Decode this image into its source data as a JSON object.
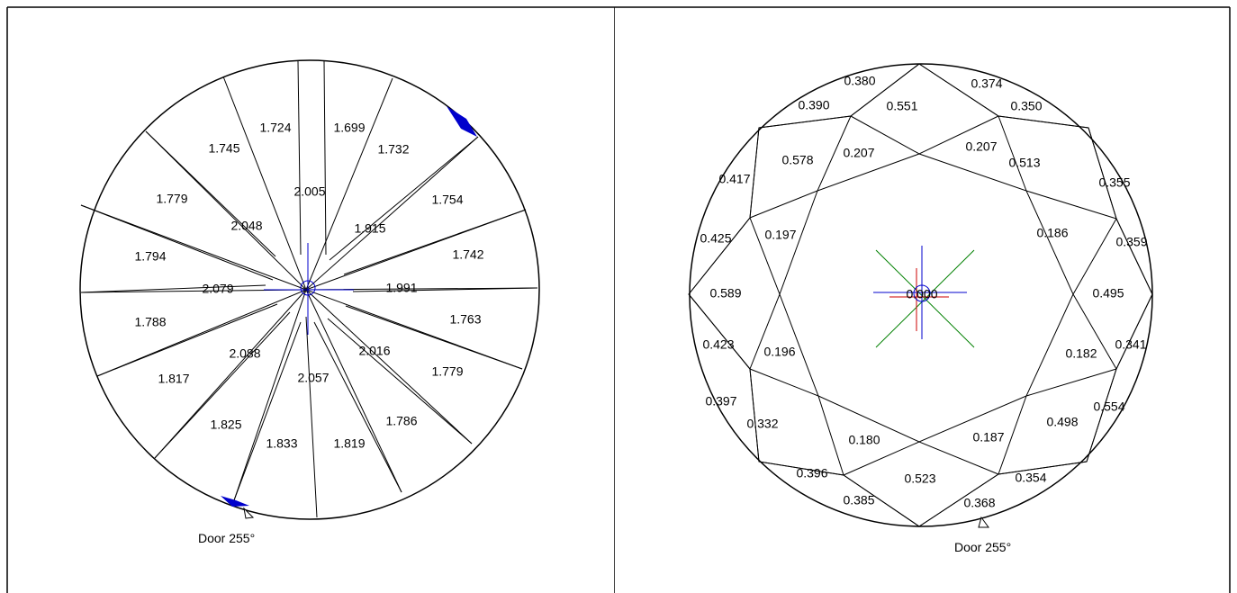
{
  "pavilion": {
    "values": [
      "1.724",
      "1.699",
      "1.745",
      "1.732",
      "2.005",
      "1.779",
      "1.754",
      "2.048",
      "1.915",
      "1.794",
      "1.742",
      "2.079",
      "1.991",
      "1.788",
      "1.763",
      "2.088",
      "2.016",
      "1.817",
      "2.057",
      "1.779",
      "1.786",
      "1.825",
      "1.833",
      "1.819"
    ],
    "door_label": "Door 255°",
    "accent_color": "#0000cc"
  },
  "crown": {
    "values": [
      "0.380",
      "0.374",
      "0.390",
      "0.551",
      "0.350",
      "0.578",
      "0.207",
      "0.207",
      "0.513",
      "0.417",
      "0.355",
      "0.425",
      "0.197",
      "0.186",
      "0.359",
      "0.589",
      "0.000",
      "0.495",
      "0.423",
      "0.196",
      "0.182",
      "0.341",
      "0.397",
      "0.332",
      "0.554",
      "0.180",
      "0.187",
      "0.498",
      "0.396",
      "0.523",
      "0.354",
      "0.385",
      "0.368"
    ],
    "door_label": "Door 255°",
    "crosshair_colors": [
      "#0000cc",
      "#cc0000",
      "#008000"
    ]
  }
}
